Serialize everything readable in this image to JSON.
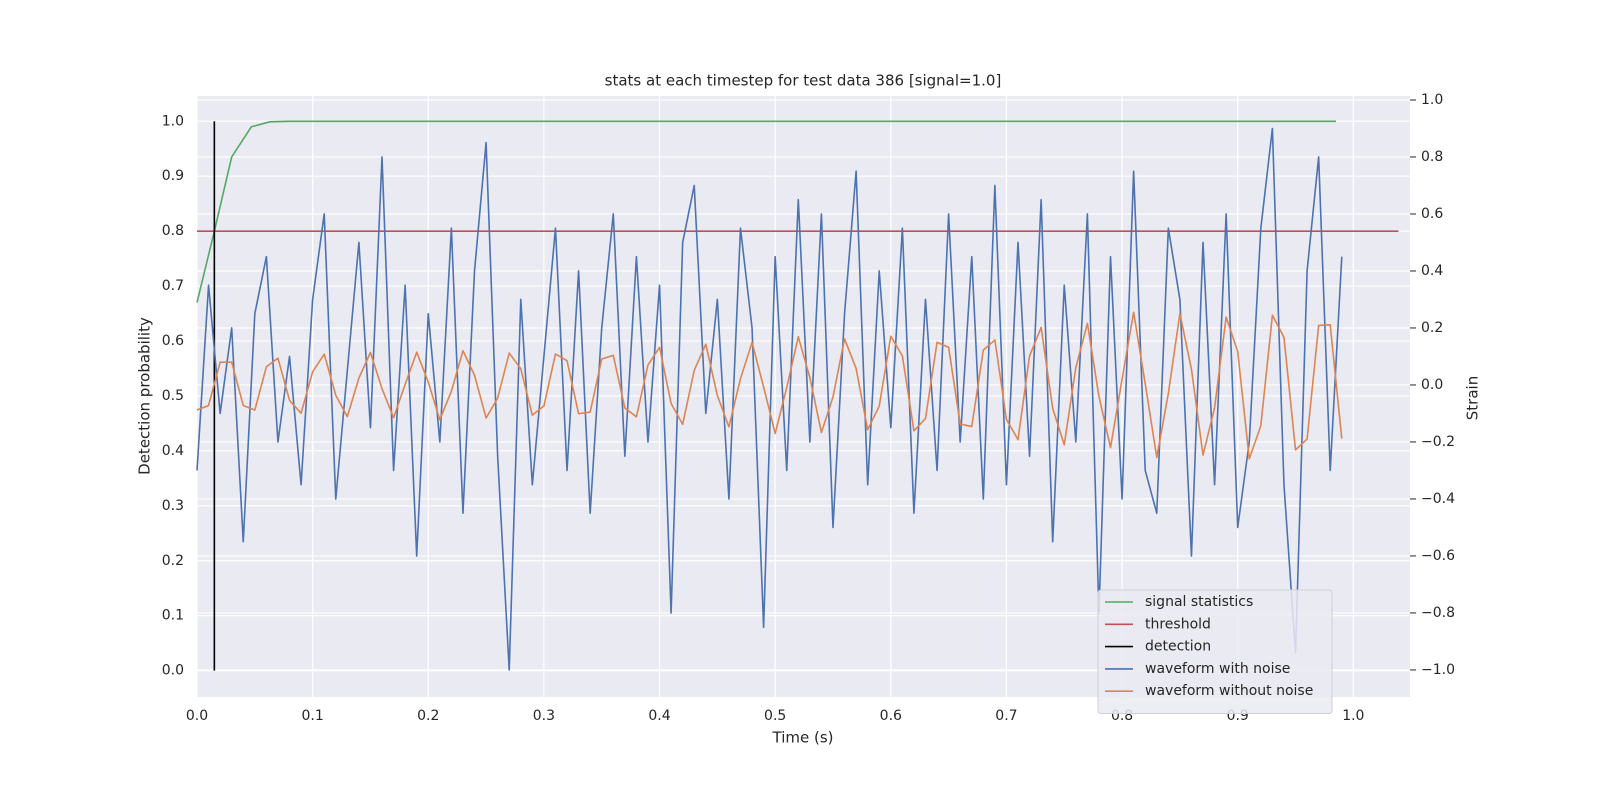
{
  "chart_data": {
    "type": "line",
    "title": "stats at each timestep for test data 386 [signal=1.0]",
    "xlabel": "Time (s)",
    "ylabel": "Detection probability",
    "y2label": "Strain",
    "grid": true,
    "legend": "lower right",
    "xlim": [
      0,
      1.049
    ],
    "ylim": [
      -0.048,
      1.046
    ],
    "y2lim": [
      -1.095,
      1.014
    ],
    "xticks": [
      {
        "value": 0,
        "label": "0.0"
      },
      {
        "value": 0.1,
        "label": "0.1"
      },
      {
        "value": 0.2,
        "label": "0.2"
      },
      {
        "value": 0.3,
        "label": "0.3"
      },
      {
        "value": 0.4,
        "label": "0.4"
      },
      {
        "value": 0.5,
        "label": "0.5"
      },
      {
        "value": 0.6,
        "label": "0.6"
      },
      {
        "value": 0.7,
        "label": "0.7"
      },
      {
        "value": 0.8,
        "label": "0.8"
      },
      {
        "value": 0.9,
        "label": "0.9"
      },
      {
        "value": 1,
        "label": "1.0"
      }
    ],
    "yticks": [
      {
        "value": 0,
        "label": "0.0"
      },
      {
        "value": 0.1,
        "label": "0.1"
      },
      {
        "value": 0.2,
        "label": "0.2"
      },
      {
        "value": 0.3,
        "label": "0.3"
      },
      {
        "value": 0.4,
        "label": "0.4"
      },
      {
        "value": 0.5,
        "label": "0.5"
      },
      {
        "value": 0.6,
        "label": "0.6"
      },
      {
        "value": 0.7,
        "label": "0.7"
      },
      {
        "value": 0.8,
        "label": "0.8"
      },
      {
        "value": 0.9,
        "label": "0.9"
      },
      {
        "value": 1,
        "label": "1.0"
      }
    ],
    "y2ticks": [
      {
        "value": -1,
        "label": "−1.0"
      },
      {
        "value": -0.8,
        "label": "−0.8"
      },
      {
        "value": -0.6,
        "label": "−0.6"
      },
      {
        "value": -0.4,
        "label": "−0.4"
      },
      {
        "value": -0.2,
        "label": "−0.2"
      },
      {
        "value": 0,
        "label": "0.0"
      },
      {
        "value": 0.2,
        "label": "0.2"
      },
      {
        "value": 0.4,
        "label": "0.4"
      },
      {
        "value": 0.6,
        "label": "0.6"
      },
      {
        "value": 0.8,
        "label": "0.8"
      },
      {
        "value": 1,
        "label": "1.0"
      }
    ],
    "x": [
      0,
      0.01,
      0.02,
      0.03,
      0.04,
      0.05,
      0.06,
      0.07,
      0.08,
      0.09,
      0.1,
      0.11,
      0.12,
      0.13,
      0.14,
      0.15,
      0.16,
      0.17,
      0.18,
      0.19,
      0.2,
      0.21,
      0.22,
      0.23,
      0.24,
      0.25,
      0.26,
      0.27,
      0.28,
      0.29,
      0.3,
      0.31,
      0.32,
      0.33,
      0.34,
      0.35,
      0.36,
      0.37,
      0.38,
      0.39,
      0.4,
      0.41,
      0.42,
      0.43,
      0.44,
      0.45,
      0.46,
      0.47,
      0.48,
      0.49,
      0.5,
      0.51,
      0.52,
      0.53,
      0.54,
      0.55,
      0.56,
      0.57,
      0.58,
      0.59,
      0.6,
      0.61,
      0.62,
      0.63,
      0.64,
      0.65,
      0.66,
      0.67,
      0.68,
      0.69,
      0.7,
      0.71,
      0.72,
      0.73,
      0.74,
      0.75,
      0.76,
      0.77,
      0.78,
      0.79,
      0.8,
      0.81,
      0.82,
      0.83,
      0.84,
      0.85,
      0.86,
      0.87,
      0.88,
      0.89,
      0.9,
      0.91,
      0.92,
      0.93,
      0.94,
      0.95,
      0.96,
      0.97,
      0.98,
      0.99
    ],
    "series": [
      {
        "name": "signal statistics",
        "color": "#55a868",
        "axis": "y",
        "x": [
          0,
          0.015,
          0.03,
          0.047,
          0.063,
          0.08,
          0.985
        ],
        "values": [
          0.67,
          0.8,
          0.935,
          0.99,
          0.999,
          1.0,
          1.0
        ]
      },
      {
        "name": "threshold",
        "color": "#c44e52",
        "axis": "y",
        "x": [
          0,
          1.039
        ],
        "values": [
          0.8,
          0.8
        ]
      },
      {
        "name": "detection",
        "color": "#000000",
        "axis": "y",
        "x": [
          0.015,
          0.015
        ],
        "values": [
          0,
          1
        ]
      },
      {
        "name": "waveform with noise",
        "color": "#4c72b0",
        "axis": "y2",
        "values": [
          -0.3,
          0.35,
          -0.1,
          0.2,
          -0.55,
          0.25,
          0.45,
          -0.2,
          0.1,
          -0.35,
          0.3,
          0.6,
          -0.4,
          0.05,
          0.5,
          -0.15,
          0.8,
          -0.3,
          0.35,
          -0.6,
          0.25,
          -0.2,
          0.55,
          -0.45,
          0.4,
          0.85,
          -0.25,
          -1.0,
          0.3,
          -0.35,
          0.1,
          0.55,
          -0.3,
          0.4,
          -0.45,
          0.2,
          0.6,
          -0.25,
          0.45,
          -0.2,
          0.35,
          -0.8,
          0.5,
          0.7,
          -0.1,
          0.3,
          -0.4,
          0.55,
          0.2,
          -0.85,
          0.45,
          -0.3,
          0.65,
          -0.2,
          0.6,
          -0.5,
          0.25,
          0.75,
          -0.35,
          0.4,
          -0.15,
          0.55,
          -0.45,
          0.3,
          -0.3,
          0.6,
          -0.2,
          0.45,
          -0.4,
          0.7,
          -0.35,
          0.5,
          -0.25,
          0.65,
          -0.55,
          0.35,
          -0.2,
          0.6,
          -0.8,
          0.45,
          -0.4,
          0.75,
          -0.3,
          -0.45,
          0.55,
          0.3,
          -0.6,
          0.5,
          -0.35,
          0.6,
          -0.5,
          -0.2,
          0.55,
          0.9,
          -0.35,
          -0.94,
          0.4,
          0.8,
          -0.3,
          0.45
        ]
      },
      {
        "name": "waveform without noise",
        "color": "#dd8452",
        "axis": "y2",
        "values": [
          -0.088,
          -0.072,
          0.08,
          0.08,
          -0.072,
          -0.088,
          0.064,
          0.094,
          -0.054,
          -0.099,
          0.046,
          0.108,
          -0.036,
          -0.111,
          0.024,
          0.114,
          -0.013,
          -0.115,
          0.002,
          0.115,
          0.01,
          -0.122,
          -0.022,
          0.12,
          0.034,
          -0.116,
          -0.046,
          0.112,
          0.057,
          -0.106,
          -0.074,
          0.109,
          0.085,
          -0.101,
          -0.095,
          0.091,
          0.104,
          -0.081,
          -0.112,
          0.07,
          0.132,
          -0.065,
          -0.138,
          0.051,
          0.143,
          -0.037,
          -0.147,
          0.022,
          0.149,
          -0.007,
          -0.17,
          -0.009,
          0.169,
          0.026,
          -0.167,
          -0.042,
          0.162,
          0.058,
          -0.157,
          -0.074,
          0.171,
          0.102,
          -0.161,
          -0.118,
          0.15,
          0.132,
          -0.137,
          -0.146,
          0.122,
          0.158,
          -0.121,
          -0.192,
          0.102,
          0.202,
          -0.082,
          -0.21,
          0.061,
          0.216,
          -0.04,
          -0.22,
          0.02,
          0.255,
          0.005,
          -0.254,
          -0.03,
          0.251,
          0.055,
          -0.246,
          -0.08,
          0.238,
          0.117,
          -0.259,
          -0.143,
          0.245,
          0.167,
          -0.228,
          -0.19,
          0.209,
          0.211,
          -0.188
        ]
      }
    ]
  }
}
